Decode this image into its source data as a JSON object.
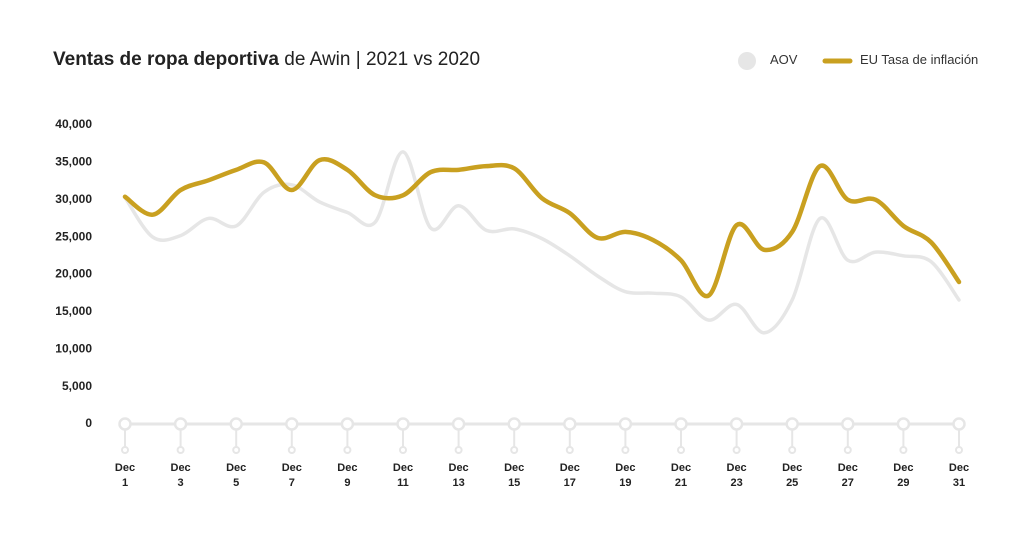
{
  "chart_data": {
    "type": "line",
    "title_bold": "Ventas de ropa deportiva",
    "title": "de Awin | 2021 vs 2020",
    "categories": [
      "Dec 1",
      null,
      "Dec 3",
      null,
      "Dec 5",
      null,
      "Dec 7",
      null,
      "Dec 9",
      null,
      "Dec 11",
      null,
      "Dec 13",
      null,
      "Dec 15",
      null,
      "Dec 17",
      null,
      "Dec 19",
      null,
      "Dec 21",
      null,
      "Dec 23",
      null,
      "Dec 25",
      null,
      "Dec 27",
      null,
      "Dec 29",
      null,
      "Dec 31"
    ],
    "series": [
      {
        "name": "AOV",
        "color": "#e6e6e6",
        "values": [
          30300,
          25000,
          25200,
          27500,
          26500,
          31000,
          32000,
          29700,
          28300,
          27000,
          36400,
          26200,
          29200,
          25900,
          26100,
          24800,
          22500,
          19800,
          17700,
          17500,
          17000,
          13900,
          16000,
          12200,
          16600,
          27500,
          21900,
          23000,
          22500,
          21700,
          16600
        ]
      },
      {
        "name": "EU Tasa de inflación",
        "color": "#c9a020",
        "values": [
          30400,
          28000,
          31300,
          32600,
          34000,
          35000,
          31300,
          35300,
          34000,
          30600,
          30600,
          33700,
          34000,
          34500,
          34200,
          30200,
          28200,
          24900,
          25700,
          24600,
          21900,
          17200,
          26600,
          23300,
          25700,
          34500,
          30000,
          30000,
          26500,
          24300,
          19000
        ]
      }
    ],
    "ylim": [
      0,
      40000
    ],
    "yticks": [
      0,
      {
        "value": 5000,
        "label": "5,000"
      },
      {
        "value": 10000,
        "label": "10,000"
      },
      {
        "value": 15000,
        "label": "15,000"
      },
      {
        "value": 20000,
        "label": "20,000"
      },
      {
        "value": 25000,
        "label": "25,000"
      },
      {
        "value": 30000,
        "label": "30,000"
      },
      {
        "value": 35000,
        "label": "35,000"
      },
      {
        "value": 40000,
        "label": "40,000"
      }
    ],
    "legend": "top-right"
  }
}
